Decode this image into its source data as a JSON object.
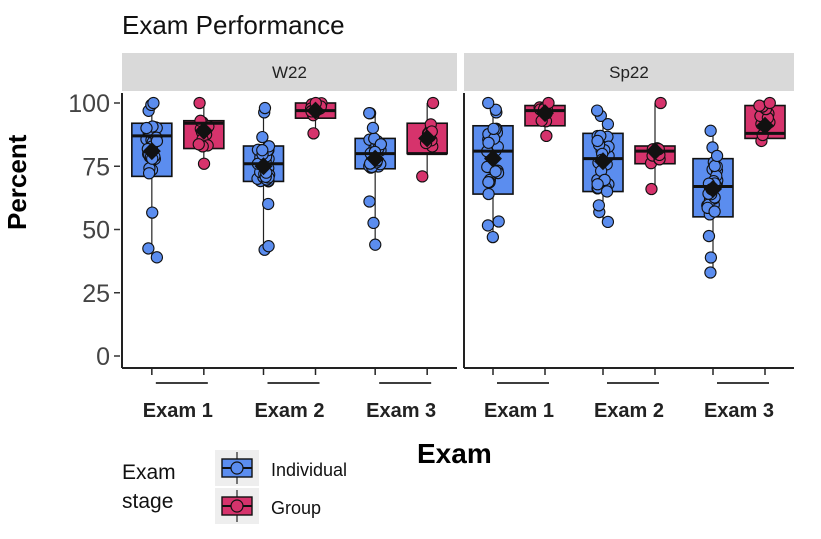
{
  "chart_data": {
    "type": "box",
    "title": "Exam Performance",
    "xlabel": "Exam",
    "ylabel": "Percent",
    "ylim": [
      0,
      100
    ],
    "yticks": [
      0,
      25,
      50,
      75,
      100
    ],
    "legend": {
      "title": "Exam\nstage",
      "title_lines": [
        "Exam",
        "stage"
      ],
      "position": "bottom-left",
      "entries": [
        "Individual",
        "Group"
      ]
    },
    "colors": {
      "Individual": "#5b8def",
      "Group": "#d6336c",
      "strip": "#d9d9d9",
      "mean": "#111111"
    },
    "categories": [
      "Exam 1",
      "Exam 2",
      "Exam 3"
    ],
    "panels": [
      {
        "name": "W22",
        "groups": [
          {
            "exam": "Exam 1",
            "stage": "Individual",
            "min": 39,
            "q1": 71,
            "median": 87,
            "q3": 92,
            "max": 100,
            "mean": 81
          },
          {
            "exam": "Exam 1",
            "stage": "Group",
            "min": 76,
            "q1": 82,
            "median": 92,
            "q3": 93,
            "max": 100,
            "mean": 89
          },
          {
            "exam": "Exam 2",
            "stage": "Individual",
            "min": 42,
            "q1": 69,
            "median": 76,
            "q3": 83,
            "max": 98,
            "mean": 75
          },
          {
            "exam": "Exam 2",
            "stage": "Group",
            "min": 88,
            "q1": 94,
            "median": 97,
            "q3": 100,
            "max": 100,
            "mean": 97
          },
          {
            "exam": "Exam 3",
            "stage": "Individual",
            "min": 44,
            "q1": 74,
            "median": 80,
            "q3": 86,
            "max": 96,
            "mean": 78
          },
          {
            "exam": "Exam 3",
            "stage": "Group",
            "min": 71,
            "q1": 80,
            "median": 80,
            "q3": 92,
            "max": 100,
            "mean": 86
          }
        ]
      },
      {
        "name": "Sp22",
        "groups": [
          {
            "exam": "Exam 1",
            "stage": "Individual",
            "min": 47,
            "q1": 64,
            "median": 81,
            "q3": 91,
            "max": 100,
            "mean": 78
          },
          {
            "exam": "Exam 1",
            "stage": "Group",
            "min": 87,
            "q1": 91,
            "median": 97,
            "q3": 99,
            "max": 100,
            "mean": 96
          },
          {
            "exam": "Exam 2",
            "stage": "Individual",
            "min": 53,
            "q1": 65,
            "median": 78,
            "q3": 88,
            "max": 97,
            "mean": 77
          },
          {
            "exam": "Exam 2",
            "stage": "Group",
            "min": 66,
            "q1": 76,
            "median": 81,
            "q3": 83,
            "max": 100,
            "mean": 81
          },
          {
            "exam": "Exam 3",
            "stage": "Individual",
            "min": 33,
            "q1": 55,
            "median": 67,
            "q3": 78,
            "max": 89,
            "mean": 66
          },
          {
            "exam": "Exam 3",
            "stage": "Group",
            "min": 85,
            "q1": 86,
            "median": 88,
            "q3": 99,
            "max": 100,
            "mean": 91
          }
        ]
      }
    ]
  }
}
